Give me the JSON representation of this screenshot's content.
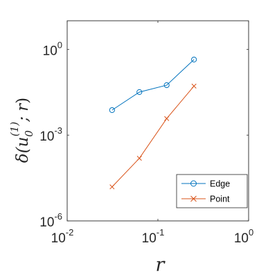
{
  "chart_data": {
    "type": "line",
    "xscale": "log",
    "yscale": "log",
    "xlim": [
      0.01,
      1
    ],
    "ylim": [
      1e-06,
      10
    ],
    "xticks": [
      {
        "value": 0.01,
        "base": "10",
        "exp": "-2"
      },
      {
        "value": 0.1,
        "base": "10",
        "exp": "-1"
      },
      {
        "value": 1,
        "base": "10",
        "exp": "0"
      }
    ],
    "yticks": [
      {
        "value": 1e-06,
        "base": "10",
        "exp": "-6"
      },
      {
        "value": 0.001,
        "base": "10",
        "exp": "-3"
      },
      {
        "value": 1,
        "base": "10",
        "exp": "0"
      }
    ],
    "xlabel": "r",
    "ylabel": "δ(u0(1); r)",
    "grid": false,
    "legend_position": "bottom-right",
    "x": [
      0.03125,
      0.0625,
      0.125,
      0.25
    ],
    "series": [
      {
        "name": "Edge",
        "marker": "circle",
        "color": "#0072BD",
        "values": [
          0.0075,
          0.032,
          0.056,
          0.44
        ]
      },
      {
        "name": "Point",
        "marker": "x",
        "color": "#D95319",
        "values": [
          1.55e-05,
          0.000155,
          0.0038,
          0.052
        ]
      }
    ]
  }
}
